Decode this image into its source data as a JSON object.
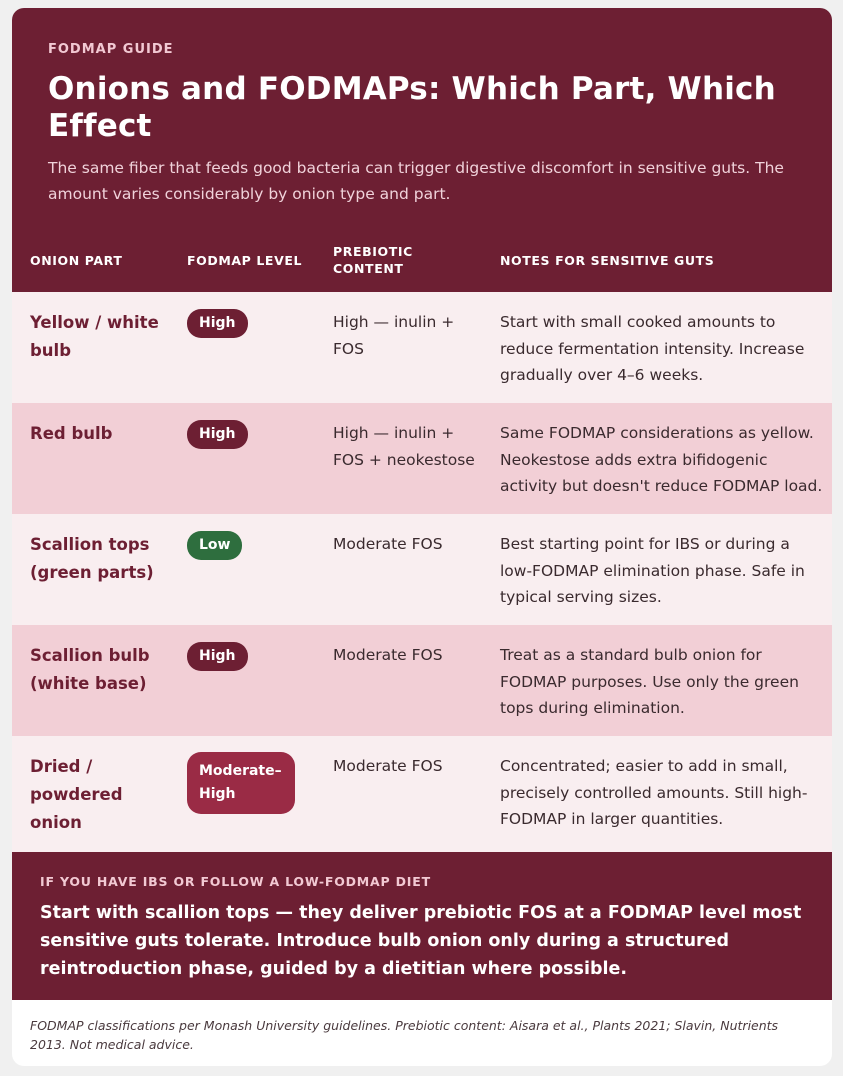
{
  "header": {
    "eyebrow": "FODMAP GUIDE",
    "title": "Onions and FODMAPs: Which Part, Which Effect",
    "subtitle": "The same fiber that feeds good bacteria can trigger digestive discomfort in sensitive guts. The amount varies considerably by onion type and part."
  },
  "table": {
    "columns": [
      "ONION PART",
      "FODMAP LEVEL",
      "PREBIOTIC CONTENT",
      "NOTES FOR SENSITIVE GUTS"
    ],
    "rows": [
      {
        "part": "Yellow / white bulb",
        "level": "High",
        "prebiotic": "High — inulin + FOS",
        "notes": "Start with small cooked amounts to reduce fermentation intensity. Increase gradually over 4–6 weeks."
      },
      {
        "part": "Red bulb",
        "level": "High",
        "prebiotic": "High — inulin + FOS + neokestose",
        "notes": "Same FODMAP considerations as yellow. Neokestose adds extra bifidogenic activity but doesn't reduce FODMAP load."
      },
      {
        "part": "Scallion tops (green parts)",
        "level": "Low",
        "prebiotic": "Moderate FOS",
        "notes": "Best starting point for IBS or during a low-FODMAP elimination phase. Safe in typical serving sizes."
      },
      {
        "part": "Scallion bulb (white base)",
        "level": "High",
        "prebiotic": "Moderate FOS",
        "notes": "Treat as a standard bulb onion for FODMAP purposes. Use only the green tops during elimination."
      },
      {
        "part": "Dried / powdered onion",
        "level": "Moderate–High",
        "prebiotic": "Moderate FOS",
        "notes": "Concentrated; easier to add in small, precisely controlled amounts. Still high-FODMAP in larger quantities."
      }
    ]
  },
  "callout": {
    "label": "IF YOU HAVE IBS OR FOLLOW A LOW-FODMAP DIET",
    "text": "Start with scallion tops — they deliver prebiotic FOS at a FODMAP level most sensitive guts tolerate. Introduce bulb onion only during a structured reintroduction phase, guided by a dietitian where possible."
  },
  "footnote": "FODMAP classifications per Monash University guidelines. Prebiotic content: Aisara et al., Plants 2021; Slavin, Nutrients 2013. Not medical advice.",
  "colors": {
    "primary": "#6d1f33",
    "low_badge": "#2e6e3e",
    "moderate_badge": "#9a2b45",
    "row_light": "#f9eef0",
    "row_pink": "#f2cfd6"
  }
}
